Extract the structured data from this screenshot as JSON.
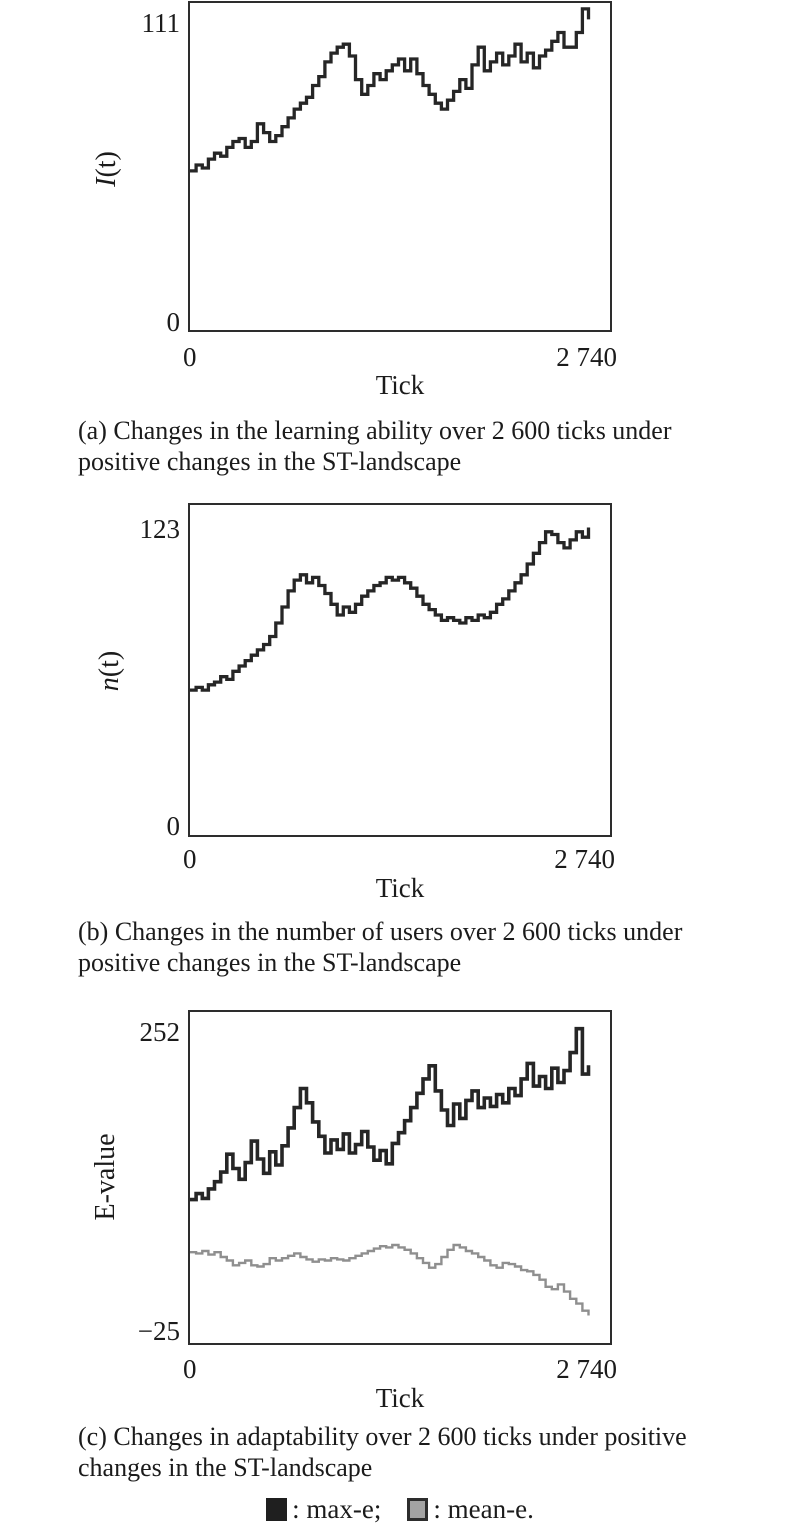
{
  "figure": {
    "panels": [
      {
        "id": "a",
        "y_title_italic": "I",
        "y_title_rest": "(t)",
        "y_max": "111",
        "y_min": "0",
        "x_min": "0",
        "x_max": "2 740",
        "x_title": "Tick",
        "caption_line1": "(a) Changes in the learning ability over 2 600 ticks under",
        "caption_line2": "positive changes in the ST-landscape"
      },
      {
        "id": "b",
        "y_title_italic": "n",
        "y_title_rest": "(t)",
        "y_max": "123",
        "y_min": "0",
        "x_min": "0",
        "x_max": "2 740",
        "x_title": "Tick",
        "caption_line1": "(b) Changes in the number of users over 2 600 ticks under",
        "caption_line2": "positive changes in the ST-landscape"
      },
      {
        "id": "c",
        "y_title_italic": "",
        "y_title_rest": "E-value",
        "y_max": "252",
        "y_min": "−25",
        "x_min": "0",
        "x_max": "2 740",
        "x_title": "Tick",
        "caption_line1": "(c) Changes in adaptability over 2 600 ticks under positive",
        "caption_line2": "changes in the ST-landscape"
      }
    ],
    "legend": [
      {
        "label": ": max-e;",
        "color": "#1f1f1f"
      },
      {
        "label": ": mean-e.",
        "color": "#a3a3a3"
      }
    ]
  },
  "chart_data": [
    {
      "type": "line",
      "panel": "a",
      "title": "(a) Changes in the learning ability over 2 600 ticks under positive changes in the ST-landscape",
      "xlabel": "Tick",
      "ylabel": "I(t)",
      "xlim": [
        0,
        2740
      ],
      "ylim": [
        0,
        111
      ],
      "x_tick_labels": [
        "0",
        "2 740"
      ],
      "y_tick_labels": [
        "0",
        "111"
      ],
      "grid": false,
      "series": [
        {
          "name": "I(t)",
          "color": "#262626",
          "stroke_width": 3.3,
          "x": [
            0,
            40,
            80,
            120,
            160,
            200,
            240,
            280,
            320,
            360,
            400,
            440,
            480,
            520,
            560,
            600,
            640,
            680,
            720,
            760,
            800,
            840,
            880,
            920,
            960,
            1000,
            1040,
            1080,
            1120,
            1160,
            1200,
            1240,
            1280,
            1320,
            1360,
            1400,
            1440,
            1480,
            1520,
            1560,
            1600,
            1640,
            1680,
            1720,
            1760,
            1800,
            1840,
            1880,
            1920,
            1960,
            2000,
            2040,
            2080,
            2120,
            2160,
            2200,
            2240,
            2280,
            2320,
            2360,
            2400,
            2440,
            2480,
            2520,
            2560,
            2600
          ],
          "y": [
            54,
            56,
            55,
            58,
            60,
            59,
            62,
            64,
            65,
            62,
            64,
            70,
            67,
            64,
            66,
            69,
            72,
            75,
            77,
            79,
            83,
            86,
            91,
            94,
            96,
            97,
            93,
            85,
            80,
            83,
            87,
            85,
            88,
            90,
            92,
            88,
            92,
            87,
            83,
            80,
            77,
            75,
            78,
            81,
            85,
            82,
            90,
            96,
            88,
            91,
            94,
            90,
            93,
            97,
            91,
            94,
            89,
            93,
            95,
            98,
            101,
            96,
            96,
            101,
            109,
            106
          ]
        }
      ]
    },
    {
      "type": "line",
      "panel": "b",
      "title": "(b) Changes in the number of users over 2 600 ticks under positive changes in the ST-landscape",
      "xlabel": "Tick",
      "ylabel": "n(t)",
      "xlim": [
        0,
        2740
      ],
      "ylim": [
        0,
        123
      ],
      "x_tick_labels": [
        "0",
        "2 740"
      ],
      "y_tick_labels": [
        "0",
        "123"
      ],
      "grid": false,
      "series": [
        {
          "name": "n(t)",
          "color": "#262626",
          "stroke_width": 3.3,
          "x": [
            0,
            40,
            80,
            120,
            160,
            200,
            240,
            280,
            320,
            360,
            400,
            440,
            480,
            520,
            560,
            600,
            640,
            680,
            720,
            760,
            800,
            840,
            880,
            920,
            960,
            1000,
            1040,
            1080,
            1120,
            1160,
            1200,
            1240,
            1280,
            1320,
            1360,
            1400,
            1440,
            1480,
            1520,
            1560,
            1600,
            1640,
            1680,
            1720,
            1760,
            1800,
            1840,
            1880,
            1920,
            1960,
            2000,
            2040,
            2080,
            2120,
            2160,
            2200,
            2240,
            2280,
            2320,
            2360,
            2400,
            2440,
            2480,
            2520,
            2560,
            2600
          ],
          "y": [
            54,
            55,
            54,
            56,
            57,
            59,
            58,
            61,
            63,
            65,
            67,
            69,
            71,
            74,
            79,
            85,
            91,
            95,
            97,
            94,
            96,
            93,
            90,
            86,
            82,
            85,
            83,
            86,
            89,
            91,
            93,
            94,
            96,
            95,
            96,
            94,
            92,
            89,
            86,
            84,
            82,
            80,
            81,
            80,
            79,
            81,
            80,
            82,
            81,
            83,
            86,
            88,
            91,
            94,
            97,
            101,
            105,
            109,
            113,
            112,
            109,
            107,
            110,
            113,
            111,
            114
          ]
        }
      ]
    },
    {
      "type": "line",
      "panel": "c",
      "title": "(c) Changes in adaptability over 2 600 ticks under positive changes in the ST-landscape",
      "xlabel": "Tick",
      "ylabel": "E-value",
      "xlim": [
        0,
        2740
      ],
      "ylim": [
        -25,
        252
      ],
      "x_tick_labels": [
        "0",
        "2 740"
      ],
      "y_tick_labels": [
        "−25",
        "252"
      ],
      "grid": false,
      "legend_entries": [
        "max-e",
        "mean-e"
      ],
      "series": [
        {
          "name": "max-e",
          "color": "#262626",
          "stroke_width": 3.6,
          "x": [
            0,
            40,
            80,
            120,
            160,
            200,
            240,
            280,
            320,
            360,
            400,
            440,
            480,
            520,
            560,
            600,
            640,
            680,
            720,
            760,
            800,
            840,
            880,
            920,
            960,
            1000,
            1040,
            1080,
            1120,
            1160,
            1200,
            1240,
            1280,
            1320,
            1360,
            1400,
            1440,
            1480,
            1520,
            1560,
            1600,
            1640,
            1680,
            1720,
            1760,
            1800,
            1840,
            1880,
            1920,
            1960,
            2000,
            2040,
            2080,
            2120,
            2160,
            2200,
            2240,
            2280,
            2320,
            2360,
            2400,
            2440,
            2480,
            2520,
            2560,
            2600
          ],
          "y": [
            95,
            100,
            96,
            104,
            110,
            118,
            133,
            121,
            112,
            126,
            144,
            129,
            117,
            135,
            124,
            140,
            155,
            172,
            188,
            176,
            160,
            148,
            134,
            145,
            137,
            150,
            134,
            141,
            152,
            139,
            128,
            136,
            125,
            142,
            151,
            161,
            172,
            184,
            196,
            207,
            186,
            170,
            157,
            175,
            163,
            178,
            186,
            172,
            180,
            173,
            183,
            176,
            188,
            182,
            196,
            209,
            190,
            198,
            188,
            205,
            193,
            203,
            218,
            238,
            200,
            206
          ]
        },
        {
          "name": "mean-e",
          "color": "#8f8f8f",
          "stroke_width": 2.4,
          "x": [
            0,
            40,
            80,
            120,
            160,
            200,
            240,
            280,
            320,
            360,
            400,
            440,
            480,
            520,
            560,
            600,
            640,
            680,
            720,
            760,
            800,
            840,
            880,
            920,
            960,
            1000,
            1040,
            1080,
            1120,
            1160,
            1200,
            1240,
            1280,
            1320,
            1360,
            1400,
            1440,
            1480,
            1520,
            1560,
            1600,
            1640,
            1680,
            1720,
            1760,
            1800,
            1840,
            1880,
            1920,
            1960,
            2000,
            2040,
            2080,
            2120,
            2160,
            2200,
            2240,
            2280,
            2320,
            2360,
            2400,
            2440,
            2480,
            2520,
            2560,
            2600
          ],
          "y": [
            51,
            50,
            52,
            49,
            51,
            47,
            44,
            40,
            42,
            44,
            40,
            39,
            41,
            46,
            44,
            46,
            48,
            50,
            47,
            45,
            43,
            45,
            44,
            46,
            45,
            44,
            46,
            48,
            50,
            52,
            54,
            56,
            55,
            57,
            55,
            53,
            50,
            46,
            42,
            38,
            41,
            47,
            53,
            57,
            55,
            52,
            50,
            47,
            44,
            40,
            38,
            42,
            41,
            39,
            36,
            35,
            32,
            28,
            22,
            20,
            24,
            18,
            12,
            8,
            2,
            -1
          ]
        }
      ]
    }
  ]
}
